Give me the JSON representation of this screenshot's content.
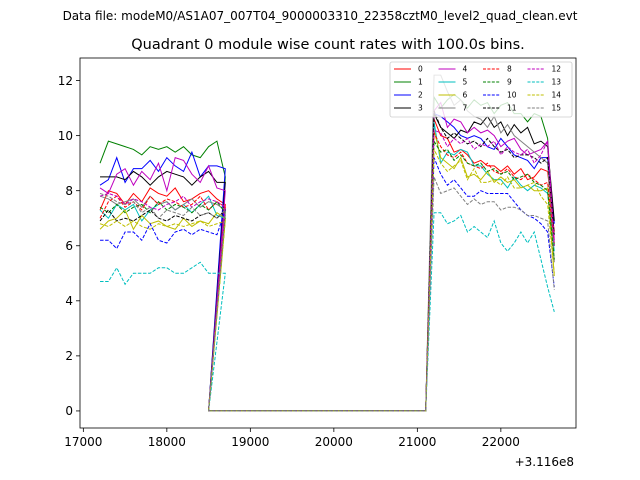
{
  "figure": {
    "suptitle": "Data file: modeM0/AS1A07_007T04_9000003310_22358cztM0_level2_quad_clean.evt"
  },
  "chart_data": {
    "type": "line",
    "title": "Quadrant 0 module wise count rates with 100.0s bins.",
    "xlabel": "",
    "ylabel": "",
    "x_offset_label": "+3.116e8",
    "xlim": [
      16960,
      22900
    ],
    "ylim": [
      -0.62,
      12.82
    ],
    "x_ticks": [
      17000,
      18000,
      19000,
      20000,
      21000,
      22000
    ],
    "x_tick_labels": [
      "17000",
      "18000",
      "19000",
      "20000",
      "21000",
      "22000"
    ],
    "y_ticks": [
      0,
      2,
      4,
      6,
      8,
      10,
      12
    ],
    "y_tick_labels": [
      "0",
      "2",
      "4",
      "6",
      "8",
      "10",
      "12"
    ],
    "grid": false,
    "legend_position": "top-right",
    "legend_columns": 4,
    "series": [
      {
        "name": "0",
        "color": "#ff0000",
        "dash": "solid",
        "seg1": [
          7.3,
          8.0,
          7.9,
          7.5,
          7.9,
          7.6,
          8.1,
          7.9,
          7.8,
          8.1,
          7.6,
          7.7,
          7.9,
          8.0,
          7.7,
          7.5
        ],
        "seg2": [
          10.6,
          10.0,
          9.9,
          9.4,
          9.5,
          9.3,
          9.0,
          9.1,
          8.9,
          8.9,
          8.7,
          8.9,
          8.6,
          8.8,
          8.4,
          8.5,
          8.8,
          8.7,
          6.5
        ]
      },
      {
        "name": "1",
        "color": "#008000",
        "dash": "solid",
        "seg1": [
          9.0,
          9.8,
          9.7,
          9.6,
          9.5,
          9.3,
          9.6,
          9.5,
          9.6,
          9.4,
          9.6,
          9.3,
          9.2,
          9.6,
          9.8,
          8.5
        ],
        "seg2": [
          11.4,
          11.0,
          11.3,
          11.5,
          11.3,
          11.0,
          11.3,
          11.1,
          11.2,
          10.8,
          11.1,
          11.2,
          10.8,
          10.8,
          10.5,
          10.8,
          10.7,
          9.9,
          6.0
        ]
      },
      {
        "name": "2",
        "color": "#0000ff",
        "dash": "solid",
        "seg1": [
          8.2,
          8.4,
          9.2,
          8.3,
          8.8,
          8.8,
          9.1,
          8.7,
          9.2,
          8.9,
          8.7,
          9.4,
          8.5,
          8.9,
          8.9,
          8.8
        ],
        "seg2": [
          10.8,
          10.7,
          10.5,
          10.3,
          10.0,
          9.9,
          10.0,
          9.9,
          9.6,
          9.5,
          9.9,
          9.6,
          9.3,
          9.2,
          9.1,
          8.8,
          9.2,
          9.2,
          6.8
        ]
      },
      {
        "name": "3",
        "color": "#000000",
        "dash": "solid",
        "seg1": [
          8.5,
          8.5,
          8.5,
          8.4,
          8.7,
          8.5,
          8.2,
          8.5,
          8.7,
          8.6,
          8.5,
          8.2,
          8.5,
          8.7,
          8.3,
          8.3
        ],
        "seg2": [
          10.8,
          10.3,
          10.1,
          9.9,
          10.2,
          10.1,
          10.5,
          10.4,
          10.7,
          10.3,
          10.5,
          10.0,
          10.4,
          10.1,
          10.3,
          9.7,
          9.8,
          9.6,
          6.9
        ]
      },
      {
        "name": "4",
        "color": "#bf00bf",
        "dash": "solid",
        "seg1": [
          8.1,
          7.9,
          8.6,
          8.8,
          8.2,
          8.7,
          8.4,
          9.0,
          8.0,
          9.2,
          9.1,
          8.6,
          8.3,
          8.9,
          8.1,
          8.0
        ],
        "seg2": [
          10.9,
          11.2,
          10.3,
          10.6,
          10.5,
          10.1,
          10.3,
          10.1,
          10.2,
          10.0,
          9.6,
          9.8,
          9.9,
          9.5,
          9.3,
          9.4,
          9.5,
          9.8,
          6.2
        ]
      },
      {
        "name": "5",
        "color": "#00bfbf",
        "dash": "solid",
        "seg1": [
          7.3,
          7.0,
          7.5,
          7.3,
          7.5,
          6.9,
          7.3,
          7.5,
          7.6,
          7.3,
          7.5,
          7.2,
          7.5,
          7.8,
          7.1,
          7.0
        ],
        "seg2": [
          10.5,
          9.0,
          9.4,
          9.3,
          9.5,
          9.4,
          8.9,
          8.9,
          8.6,
          8.4,
          8.4,
          8.1,
          8.5,
          8.2,
          8.0,
          8.2,
          8.1,
          7.9,
          5.8
        ]
      },
      {
        "name": "6",
        "color": "#bfbf00",
        "dash": "solid",
        "seg1": [
          6.6,
          6.9,
          7.0,
          7.3,
          6.6,
          7.1,
          6.8,
          6.9,
          6.7,
          6.6,
          7.0,
          6.7,
          6.9,
          6.8,
          7.2,
          7.0
        ],
        "seg2": [
          10.2,
          9.2,
          9.0,
          8.8,
          9.2,
          8.5,
          8.6,
          8.4,
          8.7,
          8.3,
          8.5,
          8.3,
          8.4,
          8.1,
          8.2,
          8.0,
          8.0,
          8.1,
          4.9
        ]
      },
      {
        "name": "7",
        "color": "#808080",
        "dash": "solid",
        "seg1": [
          7.8,
          7.7,
          7.5,
          7.6,
          7.7,
          7.4,
          7.8,
          7.5,
          7.6,
          7.3,
          7.5,
          7.7,
          7.4,
          7.6,
          7.5,
          7.3
        ],
        "seg2": [
          12.2,
          12.2,
          11.6,
          11.1,
          11.3,
          10.9,
          10.7,
          10.6,
          10.3,
          10.7,
          10.1,
          10.4,
          10.0,
          9.8,
          9.6,
          9.4,
          9.2,
          9.0,
          5.4
        ]
      },
      {
        "name": "8",
        "color": "#ff0000",
        "dash": "dashed",
        "seg1": [
          7.0,
          7.6,
          7.8,
          7.4,
          7.6,
          7.3,
          7.8,
          7.5,
          7.7,
          7.6,
          7.4,
          7.5,
          7.8,
          7.3,
          7.6,
          7.4
        ],
        "seg2": [
          10.1,
          9.6,
          9.3,
          9.2,
          9.4,
          9.0,
          8.9,
          8.8,
          9.0,
          8.7,
          8.6,
          8.8,
          8.5,
          8.4,
          8.6,
          8.4,
          8.2,
          8.3,
          6.1
        ]
      },
      {
        "name": "9",
        "color": "#008000",
        "dash": "dashed",
        "seg1": [
          7.4,
          7.2,
          7.5,
          7.2,
          7.4,
          7.5,
          7.2,
          7.6,
          7.3,
          7.5,
          7.4,
          7.2,
          7.5,
          7.3,
          7.6,
          7.2
        ],
        "seg2": [
          9.8,
          9.4,
          9.5,
          9.1,
          9.3,
          9.0,
          8.9,
          9.0,
          8.7,
          8.8,
          8.6,
          8.7,
          8.4,
          8.5,
          8.6,
          8.3,
          8.2,
          8.0,
          5.5
        ]
      },
      {
        "name": "10",
        "color": "#0000ff",
        "dash": "dashed",
        "seg1": [
          6.2,
          6.2,
          5.9,
          6.5,
          6.5,
          6.2,
          6.8,
          6.2,
          6.1,
          6.5,
          6.6,
          6.4,
          6.6,
          6.5,
          6.4,
          7.3
        ],
        "seg2": [
          9.2,
          8.6,
          8.2,
          8.4,
          8.1,
          7.8,
          7.8,
          8.0,
          7.9,
          7.9,
          7.9,
          7.9,
          7.6,
          7.3,
          7.1,
          7.0,
          6.8,
          6.5,
          4.5
        ]
      },
      {
        "name": "11",
        "color": "#000000",
        "dash": "dashed",
        "seg1": [
          6.9,
          7.3,
          6.9,
          7.0,
          6.9,
          7.1,
          7.3,
          7.0,
          6.9,
          7.1,
          7.0,
          6.9,
          7.1,
          7.2,
          7.0,
          7.3
        ],
        "seg2": [
          10.9,
          10.3,
          9.9,
          10.1,
          9.9,
          9.7,
          9.8,
          9.6,
          9.9,
          9.6,
          9.4,
          9.5,
          9.2,
          9.3,
          9.3,
          9.2,
          9.0,
          9.2,
          6.4
        ]
      },
      {
        "name": "12",
        "color": "#bf00bf",
        "dash": "dashed",
        "seg1": [
          7.8,
          7.9,
          7.8,
          7.5,
          7.7,
          7.6,
          7.4,
          7.3,
          7.5,
          7.6,
          7.8,
          7.4,
          7.6,
          7.7,
          7.6,
          7.4
        ],
        "seg2": [
          10.2,
          10.1,
          9.6,
          9.9,
          9.7,
          9.9,
          9.5,
          9.7,
          9.6,
          9.8,
          9.3,
          9.6,
          9.4,
          9.3,
          9.5,
          9.0,
          9.3,
          9.8,
          6.0
        ]
      },
      {
        "name": "13",
        "color": "#00bfbf",
        "dash": "dashed",
        "seg1": [
          4.7,
          4.7,
          5.2,
          4.6,
          5.0,
          5.0,
          5.0,
          5.2,
          5.2,
          5.0,
          5.0,
          5.2,
          5.4,
          5.0,
          5.0,
          5.0
        ],
        "seg2": [
          7.2,
          7.2,
          6.8,
          6.9,
          7.1,
          6.5,
          6.7,
          6.5,
          6.3,
          6.9,
          6.1,
          5.8,
          6.1,
          6.5,
          6.1,
          6.5,
          5.5,
          4.5,
          3.6
        ]
      },
      {
        "name": "14",
        "color": "#bfbf00",
        "dash": "dashed",
        "seg1": [
          6.8,
          6.7,
          6.9,
          6.7,
          6.9,
          6.7,
          6.6,
          6.8,
          6.7,
          6.8,
          6.7,
          6.8,
          6.9,
          6.7,
          6.8,
          6.9
        ],
        "seg2": [
          9.5,
          9.0,
          8.7,
          8.9,
          9.1,
          8.4,
          8.8,
          8.3,
          8.3,
          8.4,
          8.2,
          8.5,
          8.1,
          8.1,
          8.2,
          8.3,
          7.8,
          7.5,
          5.0
        ]
      },
      {
        "name": "15",
        "color": "#808080",
        "dash": "dashed",
        "seg1": [
          7.9,
          7.8,
          7.6,
          7.5,
          7.6,
          7.2,
          7.4,
          7.0,
          7.3,
          7.2,
          7.1,
          7.4,
          7.1,
          7.2,
          7.0,
          7.3
        ],
        "seg2": [
          8.5,
          7.9,
          8.0,
          8.1,
          7.8,
          7.5,
          7.7,
          7.5,
          7.6,
          7.6,
          7.3,
          7.4,
          7.4,
          7.3,
          7.1,
          7.1,
          7.0,
          6.9,
          4.4
        ]
      }
    ]
  }
}
